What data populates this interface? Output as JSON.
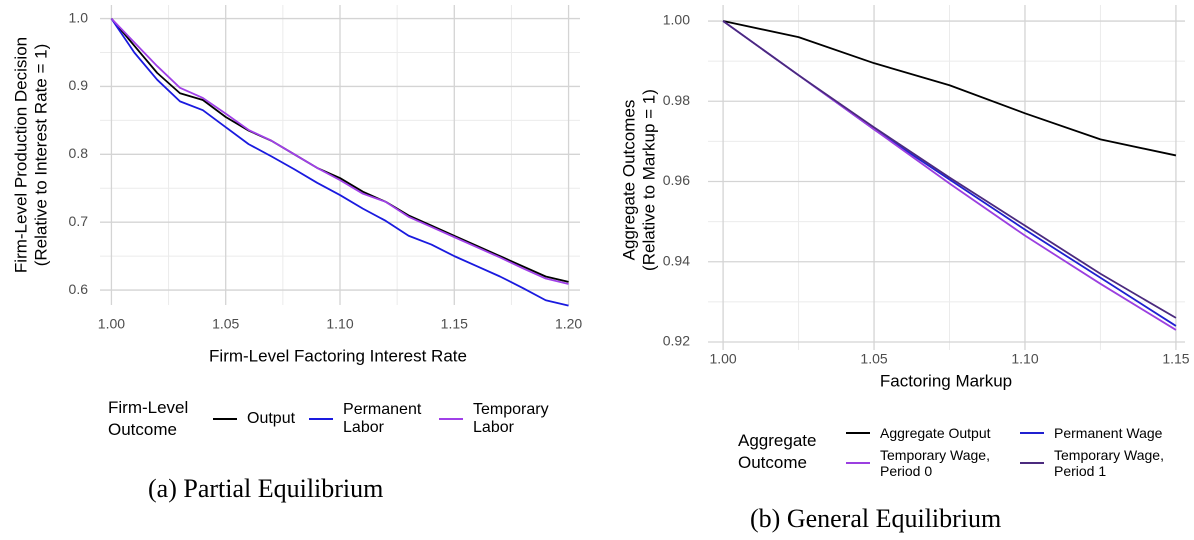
{
  "chart_data": [
    {
      "type": "line",
      "x_label": "Firm-Level Factoring Interest Rate",
      "y_label": [
        "Firm-Level Production Decision",
        "(Relative to Interest Rate = 1)"
      ],
      "caption": "(a) Partial Equilibrium",
      "legend_title": "Firm-Level Outcome",
      "x": [
        1.0,
        1.01,
        1.02,
        1.03,
        1.04,
        1.05,
        1.06,
        1.07,
        1.08,
        1.09,
        1.1,
        1.11,
        1.12,
        1.13,
        1.14,
        1.15,
        1.16,
        1.17,
        1.18,
        1.19,
        1.2
      ],
      "series": [
        {
          "name": "Output",
          "color": "#000000",
          "values": [
            1.0,
            0.96,
            0.92,
            0.89,
            0.88,
            0.855,
            0.835,
            0.82,
            0.8,
            0.78,
            0.765,
            0.745,
            0.73,
            0.71,
            0.695,
            0.68,
            0.665,
            0.65,
            0.635,
            0.62,
            0.612
          ]
        },
        {
          "name": "Permanent Labor",
          "color": "#1a1adf",
          "values": [
            1.0,
            0.95,
            0.91,
            0.878,
            0.865,
            0.84,
            0.815,
            0.797,
            0.778,
            0.758,
            0.74,
            0.72,
            0.702,
            0.68,
            0.667,
            0.65,
            0.635,
            0.62,
            0.603,
            0.585,
            0.577
          ]
        },
        {
          "name": "Temporary Labor",
          "color": "#a040e8",
          "values": [
            1.0,
            0.965,
            0.93,
            0.898,
            0.883,
            0.86,
            0.836,
            0.82,
            0.8,
            0.78,
            0.762,
            0.742,
            0.73,
            0.708,
            0.693,
            0.678,
            0.663,
            0.648,
            0.632,
            0.617,
            0.609
          ]
        }
      ],
      "xlim": [
        0.995,
        1.205
      ],
      "ylim": [
        0.578,
        1.02
      ],
      "xticks": [
        {
          "value": 1.0,
          "label": "1.00"
        },
        1.05,
        {
          "value": 1.1,
          "label": "1.10"
        },
        1.15,
        {
          "value": 1.2,
          "label": "1.20"
        }
      ],
      "yticks": [
        0.6,
        0.7,
        0.8,
        0.9,
        {
          "value": 1.0,
          "label": "1.0"
        }
      ],
      "grid": true
    },
    {
      "type": "line",
      "x_label": "Factoring Markup",
      "y_label": [
        "Aggregate Outcomes",
        "(Relative to Markup = 1)"
      ],
      "caption": "(b) General Equilibrium",
      "legend_title": "Aggregate Outcome",
      "x": [
        1.0,
        1.025,
        1.05,
        1.075,
        1.1,
        1.125,
        1.15
      ],
      "series": [
        {
          "name": "Aggregate Output",
          "color": "#000000",
          "values": [
            1.0,
            0.996,
            0.9895,
            0.984,
            0.977,
            0.9705,
            0.9665
          ]
        },
        {
          "name": "Permanent Wage",
          "color": "#2020d0",
          "values": [
            1.0,
            0.9865,
            0.973,
            0.9605,
            0.948,
            0.936,
            0.924
          ]
        },
        {
          "name": "Temporary Wage, Period 0",
          "color": "#9b3fe0",
          "values": [
            1.0,
            0.9865,
            0.973,
            0.9595,
            0.9465,
            0.9345,
            0.923
          ]
        },
        {
          "name": "Temporary Wage, Period 1",
          "color": "#4b2a7e",
          "values": [
            1.0,
            0.9865,
            0.9735,
            0.961,
            0.949,
            0.937,
            0.926
          ]
        }
      ],
      "xlim": [
        0.995,
        1.153
      ],
      "ylim": [
        0.918,
        1.004
      ],
      "xticks": [
        {
          "value": 1.0,
          "label": "1.00"
        },
        1.05,
        {
          "value": 1.1,
          "label": "1.10"
        },
        1.15
      ],
      "yticks": [
        0.92,
        0.94,
        0.96,
        0.98,
        {
          "value": 1.0,
          "label": "1.00"
        }
      ],
      "grid": true
    }
  ]
}
